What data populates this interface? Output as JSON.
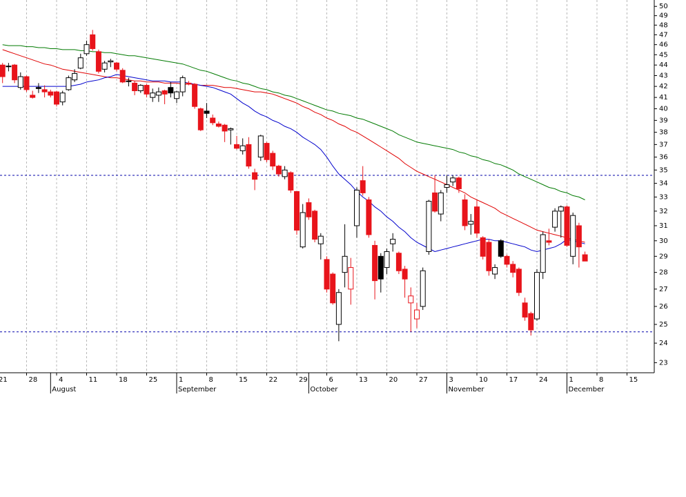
{
  "chart_data": {
    "type": "candlestick",
    "categories": [
      "21",
      null,
      null,
      null,
      null,
      "28",
      null,
      null,
      null,
      null,
      "4",
      null,
      null,
      null,
      null,
      "11",
      null,
      null,
      null,
      null,
      "18",
      null,
      null,
      null,
      null,
      "25",
      null,
      null,
      null,
      null,
      "1",
      null,
      null,
      null,
      null,
      "8",
      null,
      null,
      null,
      null,
      "15",
      null,
      null,
      null,
      null,
      "22",
      null,
      null,
      null,
      null,
      "29",
      null,
      null,
      null,
      null,
      "6",
      null,
      null,
      null,
      null,
      "13",
      null,
      null,
      null,
      null,
      "20",
      null,
      null,
      null,
      null,
      "27",
      null,
      null,
      null,
      null,
      "3",
      null,
      null,
      null,
      null,
      "10",
      null,
      null,
      null,
      null,
      "17",
      null,
      null,
      null,
      null,
      "24",
      null,
      null,
      null,
      null,
      "1",
      null,
      null,
      null,
      null,
      "8",
      null,
      null,
      null,
      null,
      "15",
      null,
      null,
      null,
      null
    ],
    "month_labels": [
      null,
      null,
      null,
      null,
      null,
      null,
      null,
      null,
      null,
      "August",
      null,
      null,
      null,
      null,
      null,
      null,
      null,
      null,
      null,
      null,
      null,
      null,
      null,
      null,
      null,
      null,
      null,
      null,
      null,
      null,
      "September",
      null,
      null,
      null,
      null,
      null,
      null,
      null,
      null,
      null,
      null,
      null,
      null,
      null,
      null,
      null,
      null,
      null,
      null,
      null,
      null,
      null,
      "October",
      null,
      null,
      null,
      null,
      null,
      null,
      null,
      null,
      null,
      null,
      null,
      null,
      null,
      null,
      null,
      null,
      null,
      null,
      null,
      null,
      null,
      null,
      "November",
      null,
      null,
      null,
      null,
      null,
      null,
      null,
      null,
      null,
      null,
      null,
      null,
      null,
      null,
      null,
      null,
      null,
      null,
      null,
      "December",
      null,
      null,
      null,
      null,
      null,
      null,
      null,
      null,
      null,
      null,
      null,
      null,
      null,
      null
    ],
    "open": [
      null,
      44.0,
      43.9,
      44.0,
      41.9,
      42.9,
      41.2,
      41.9,
      41.7,
      41.5,
      41.5,
      40.6,
      41.7,
      42.6,
      43.7,
      45.1,
      47.0,
      45.3,
      43.6,
      44.3,
      44.2,
      43.5,
      42.5,
      42.3,
      41.6,
      42.1,
      41.0,
      41.2,
      41.6,
      41.9,
      40.9,
      41.5,
      42.3,
      42.2,
      40.0,
      39.8,
      39.2,
      38.7,
      38.6,
      38.2,
      37.0,
      36.5,
      37.0,
      34.8,
      36.0,
      37.1,
      36.3,
      35.3,
      34.5,
      34.8,
      33.4,
      29.6,
      32.6,
      32.0,
      29.8,
      28.8,
      27.9,
      25.0,
      28.0,
      27.0,
      31.0,
      34.2,
      32.8,
      29.7,
      29.0,
      28.3,
      29.8,
      29.2,
      28.2,
      26.2,
      25.3,
      26.0,
      29.3,
      33.3,
      31.8,
      33.7,
      34.1,
      34.4,
      32.8,
      31.1,
      32.3,
      30.2,
      29.9,
      27.9,
      30.0,
      29.0,
      28.5,
      28.2,
      26.2,
      25.6,
      25.3,
      28.0,
      30.0,
      30.9,
      32.0,
      32.3,
      29.0,
      31.0,
      29.1,
      null,
      null,
      null,
      null,
      null,
      null,
      null,
      null,
      null,
      null,
      null
    ],
    "high": [
      null,
      44.2,
      44.2,
      44.1,
      43.3,
      43.0,
      41.6,
      42.3,
      42.1,
      41.7,
      41.6,
      41.6,
      43.0,
      43.6,
      45.1,
      46.4,
      47.5,
      45.5,
      44.4,
      44.6,
      44.3,
      43.7,
      42.8,
      42.5,
      42.2,
      42.2,
      41.8,
      41.9,
      41.7,
      42.4,
      41.6,
      43.0,
      42.5,
      42.3,
      40.1,
      40.5,
      39.5,
      38.9,
      38.7,
      38.4,
      37.7,
      37.5,
      37.6,
      35.1,
      37.8,
      37.2,
      36.5,
      35.4,
      35.3,
      34.9,
      33.4,
      32.5,
      32.9,
      32.1,
      30.5,
      29.0,
      28.0,
      27.0,
      31.1,
      28.9,
      33.7,
      35.3,
      33.0,
      30.0,
      29.2,
      29.5,
      30.5,
      29.3,
      28.4,
      27.1,
      26.2,
      28.3,
      32.8,
      34.6,
      33.5,
      34.6,
      34.6,
      34.5,
      33.2,
      31.8,
      32.8,
      30.3,
      30.1,
      28.5,
      30.1,
      29.1,
      28.7,
      28.3,
      26.5,
      25.7,
      28.2,
      30.6,
      30.8,
      32.2,
      32.4,
      32.4,
      31.9,
      31.2,
      29.3,
      null,
      null,
      null,
      null,
      null,
      null,
      null,
      null,
      null,
      null,
      null
    ],
    "low": [
      null,
      42.3,
      43.4,
      42.3,
      41.7,
      41.5,
      40.9,
      41.4,
      41.0,
      41.0,
      40.2,
      40.3,
      41.6,
      42.4,
      43.6,
      44.9,
      45.4,
      43.2,
      43.3,
      43.8,
      43.4,
      42.3,
      42.0,
      41.2,
      41.4,
      41.0,
      40.6,
      40.6,
      40.4,
      41.0,
      40.5,
      41.1,
      42.1,
      40.0,
      38.1,
      39.2,
      38.6,
      38.4,
      37.2,
      37.0,
      36.6,
      36.2,
      35.1,
      33.5,
      35.7,
      35.6,
      35.0,
      34.5,
      34.3,
      33.3,
      30.4,
      29.5,
      31.4,
      29.9,
      28.8,
      26.8,
      26.1,
      24.1,
      27.1,
      26.1,
      30.2,
      33.1,
      30.2,
      26.4,
      26.8,
      27.9,
      29.3,
      27.9,
      26.5,
      24.6,
      24.8,
      25.8,
      29.1,
      31.9,
      31.3,
      33.3,
      33.8,
      33.3,
      30.7,
      30.4,
      30.2,
      28.8,
      27.8,
      27.6,
      28.9,
      28.3,
      27.7,
      26.6,
      25.2,
      24.4,
      25.2,
      27.6,
      29.7,
      30.6,
      30.2,
      29.6,
      28.5,
      28.3,
      28.7,
      null,
      null,
      null,
      null,
      null,
      null,
      null,
      null,
      null,
      null,
      null
    ],
    "close": [
      null,
      42.9,
      43.9,
      42.6,
      42.9,
      41.7,
      41.0,
      41.8,
      41.5,
      41.2,
      40.4,
      41.4,
      42.8,
      43.2,
      44.7,
      46.0,
      45.6,
      43.4,
      44.2,
      44.4,
      43.6,
      42.4,
      42.5,
      41.6,
      42.1,
      41.3,
      41.4,
      41.5,
      41.3,
      41.4,
      41.5,
      42.8,
      42.2,
      40.2,
      38.2,
      39.6,
      38.8,
      38.5,
      38.1,
      38.3,
      36.7,
      36.9,
      35.3,
      34.3,
      37.7,
      35.8,
      35.3,
      34.7,
      35.0,
      33.5,
      30.7,
      31.9,
      31.6,
      30.1,
      30.3,
      27.0,
      26.2,
      26.8,
      29.0,
      28.3,
      33.5,
      33.3,
      30.4,
      27.5,
      27.6,
      29.3,
      30.1,
      28.1,
      27.6,
      26.6,
      25.8,
      28.1,
      32.7,
      32.0,
      33.3,
      33.9,
      34.4,
      33.6,
      31.0,
      31.3,
      30.5,
      29.0,
      28.1,
      28.3,
      29.0,
      28.5,
      28.0,
      26.8,
      25.4,
      24.7,
      28.0,
      30.4,
      29.9,
      32.0,
      32.3,
      29.7,
      31.7,
      29.6,
      28.7,
      null,
      null,
      null,
      null,
      null,
      null,
      null,
      null,
      null,
      null,
      null
    ],
    "up_color": "#000000",
    "down_color": "#e8141b",
    "lines": [
      {
        "color": "#007a00",
        "values": [
          null,
          46.0,
          45.9,
          45.9,
          45.9,
          45.8,
          45.8,
          45.7,
          45.7,
          45.6,
          45.6,
          45.5,
          45.5,
          45.5,
          45.4,
          45.4,
          45.3,
          45.3,
          45.2,
          45.2,
          45.1,
          45.0,
          44.9,
          44.9,
          44.8,
          44.7,
          44.6,
          44.5,
          44.4,
          44.3,
          44.2,
          44.1,
          43.9,
          43.7,
          43.5,
          43.4,
          43.2,
          43.0,
          42.8,
          42.6,
          42.5,
          42.3,
          42.2,
          42.0,
          41.8,
          41.7,
          41.5,
          41.4,
          41.2,
          41.1,
          40.9,
          40.7,
          40.5,
          40.3,
          40.1,
          39.9,
          39.8,
          39.6,
          39.5,
          39.4,
          39.2,
          39.1,
          38.9,
          38.7,
          38.5,
          38.3,
          38.1,
          37.8,
          37.6,
          37.4,
          37.2,
          37.1,
          37.0,
          36.9,
          36.8,
          36.7,
          36.6,
          36.4,
          36.3,
          36.1,
          36.0,
          35.8,
          35.7,
          35.5,
          35.4,
          35.2,
          35.0,
          34.7,
          34.5,
          34.3,
          34.1,
          33.9,
          33.7,
          33.6,
          33.4,
          33.3,
          33.1,
          33.0,
          32.8,
          null,
          null,
          null,
          null,
          null,
          null,
          null,
          null,
          null,
          null,
          null
        ]
      },
      {
        "color": "#e00000",
        "values": [
          null,
          45.5,
          45.3,
          45.1,
          44.9,
          44.7,
          44.5,
          44.3,
          44.1,
          44.0,
          43.8,
          43.6,
          43.5,
          43.4,
          43.3,
          43.2,
          43.1,
          43.0,
          42.9,
          42.8,
          42.8,
          42.7,
          42.6,
          42.5,
          42.5,
          42.4,
          42.4,
          42.4,
          42.3,
          42.3,
          42.3,
          42.2,
          42.2,
          42.2,
          42.1,
          42.1,
          42.1,
          42.0,
          41.9,
          41.9,
          41.8,
          41.7,
          41.6,
          41.5,
          41.5,
          41.4,
          41.3,
          41.1,
          40.9,
          40.7,
          40.5,
          40.2,
          40.0,
          39.7,
          39.5,
          39.2,
          39.0,
          38.7,
          38.5,
          38.2,
          38.0,
          37.7,
          37.4,
          37.1,
          36.8,
          36.5,
          36.2,
          35.9,
          35.5,
          35.2,
          34.9,
          34.7,
          34.5,
          34.3,
          34.1,
          33.9,
          33.7,
          33.5,
          33.3,
          33.0,
          32.8,
          32.6,
          32.4,
          32.2,
          31.9,
          31.7,
          31.5,
          31.3,
          31.1,
          30.9,
          30.7,
          30.6,
          30.5,
          30.4,
          30.3,
          30.2,
          30.1,
          30.0,
          29.9,
          null,
          null,
          null,
          null,
          null,
          null,
          null,
          null,
          null,
          null,
          null
        ]
      },
      {
        "color": "#0000cc",
        "values": [
          null,
          42.0,
          42.0,
          42.0,
          42.0,
          42.0,
          42.0,
          42.0,
          42.0,
          42.0,
          42.0,
          42.0,
          42.0,
          42.1,
          42.2,
          42.4,
          42.5,
          42.6,
          42.8,
          42.9,
          43.1,
          43.0,
          42.9,
          42.8,
          42.7,
          42.6,
          42.5,
          42.5,
          42.5,
          42.4,
          42.4,
          42.4,
          42.3,
          42.2,
          42.1,
          42.0,
          41.9,
          41.7,
          41.5,
          41.3,
          40.9,
          40.5,
          40.2,
          39.8,
          39.5,
          39.3,
          39.0,
          38.8,
          38.5,
          38.3,
          38.0,
          37.6,
          37.3,
          37.0,
          36.6,
          36.0,
          35.3,
          34.7,
          34.3,
          33.9,
          33.4,
          33.0,
          32.7,
          32.3,
          32.0,
          31.6,
          31.3,
          30.9,
          30.6,
          30.2,
          29.9,
          29.7,
          29.5,
          29.3,
          29.4,
          29.5,
          29.6,
          29.7,
          29.8,
          29.9,
          30.0,
          30.1,
          30.1,
          30.0,
          30.0,
          29.9,
          29.8,
          29.7,
          29.6,
          29.4,
          29.3,
          29.4,
          29.5,
          29.6,
          29.8,
          30.1,
          30.0,
          29.9,
          29.8,
          null,
          null,
          null,
          null,
          null,
          null,
          null,
          null,
          null,
          null,
          null
        ]
      }
    ],
    "hlines": [
      34.6,
      24.6
    ],
    "hline_color": "#0000aa",
    "log_scale": true,
    "grid": true,
    "ylim": [
      22.5,
      50.7
    ],
    "yticks": [
      23,
      24,
      25,
      26,
      27,
      28,
      29,
      30,
      31,
      32,
      33,
      34,
      35,
      36,
      37,
      38,
      39,
      40,
      41,
      42,
      43,
      44,
      45,
      46,
      47,
      48,
      49,
      50
    ]
  }
}
